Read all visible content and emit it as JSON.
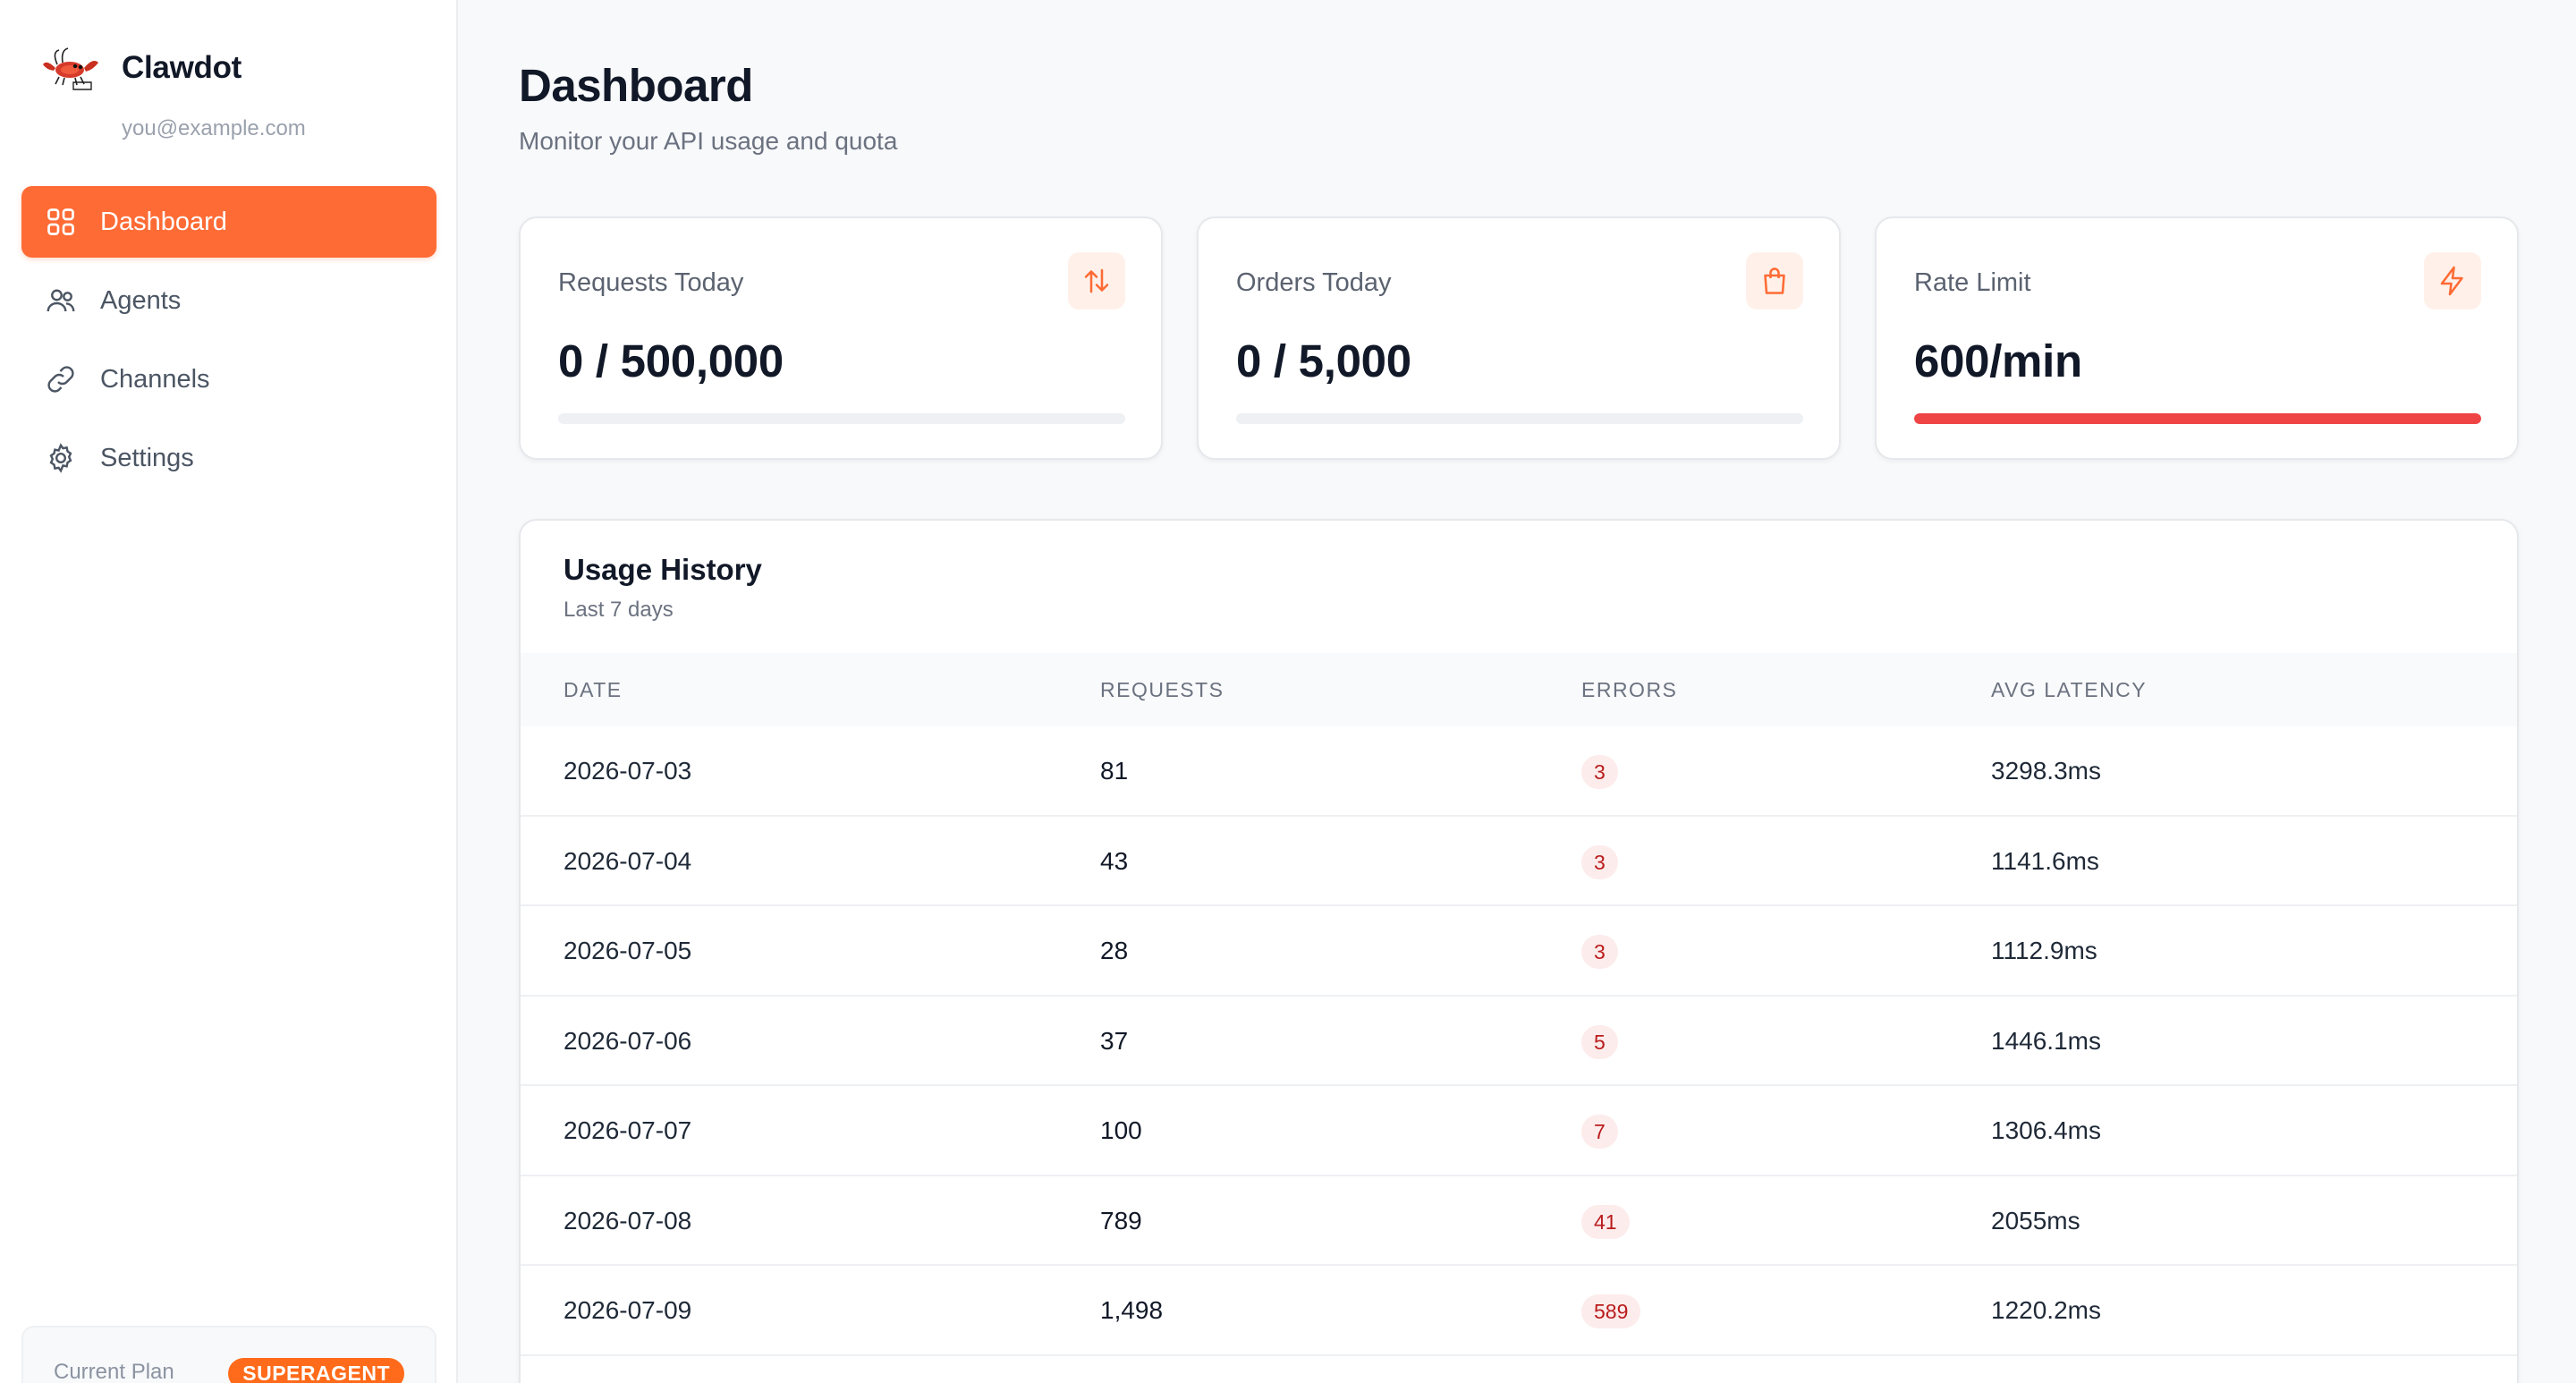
{
  "app": {
    "name": "Clawdot",
    "email": "you@example.com"
  },
  "nav": {
    "items": [
      {
        "label": "Dashboard",
        "icon": "grid-icon",
        "active": true
      },
      {
        "label": "Agents",
        "icon": "users-icon",
        "active": false
      },
      {
        "label": "Channels",
        "icon": "link-icon",
        "active": false
      },
      {
        "label": "Settings",
        "icon": "gear-icon",
        "active": false
      }
    ]
  },
  "plan": {
    "label": "Current Plan",
    "badge": "SUPERAGENT"
  },
  "page": {
    "title": "Dashboard",
    "subtitle": "Monitor your API usage and quota"
  },
  "cards": [
    {
      "label": "Requests Today",
      "value": "0 / 500,000",
      "icon": "arrows-up-down-icon",
      "usage_fraction": 0
    },
    {
      "label": "Orders Today",
      "value": "0 / 5,000",
      "icon": "shopping-bag-icon",
      "usage_fraction": 0
    },
    {
      "label": "Rate Limit",
      "value": "600/min",
      "icon": "lightning-icon",
      "usage_fraction": 1
    }
  ],
  "colors": {
    "accent": "#ff6b35",
    "danger": "#ef4444",
    "error_badge_bg": "#fdecec",
    "error_badge_text": "#b91c1c"
  },
  "history": {
    "title": "Usage History",
    "subtitle": "Last 7 days",
    "columns": [
      "DATE",
      "REQUESTS",
      "ERRORS",
      "AVG LATENCY"
    ],
    "rows": [
      {
        "date": "2026-07-03",
        "requests": "81",
        "errors": "3",
        "latency": "3298.3ms"
      },
      {
        "date": "2026-07-04",
        "requests": "43",
        "errors": "3",
        "latency": "1141.6ms"
      },
      {
        "date": "2026-07-05",
        "requests": "28",
        "errors": "3",
        "latency": "1112.9ms"
      },
      {
        "date": "2026-07-06",
        "requests": "37",
        "errors": "5",
        "latency": "1446.1ms"
      },
      {
        "date": "2026-07-07",
        "requests": "100",
        "errors": "7",
        "latency": "1306.4ms"
      },
      {
        "date": "2026-07-08",
        "requests": "789",
        "errors": "41",
        "latency": "2055ms"
      },
      {
        "date": "2026-07-09",
        "requests": "1,498",
        "errors": "589",
        "latency": "1220.2ms"
      }
    ]
  }
}
